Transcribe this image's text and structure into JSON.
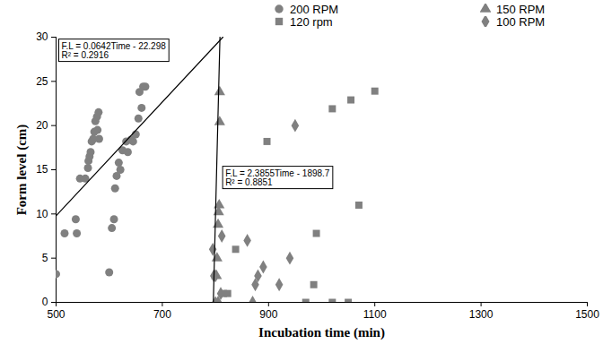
{
  "chart_data": {
    "type": "scatter",
    "xlabel": "Incubation time (min)",
    "ylabel": "Form level (cm)",
    "xlim": [
      500,
      1500
    ],
    "xticks": [
      500,
      700,
      900,
      1100,
      1300,
      1500
    ],
    "ylim": [
      0,
      30
    ],
    "yticks": [
      0,
      5,
      10,
      15,
      20,
      25,
      30
    ],
    "grid": false,
    "legend": "top",
    "series": [
      {
        "name": "200 RPM",
        "color": "#808080",
        "marker": "circle",
        "x": [
          500,
          516,
          537,
          539,
          545,
          555,
          560,
          561,
          563,
          565,
          567,
          570,
          572,
          574,
          577,
          580,
          578,
          581,
          600,
          605,
          609,
          611,
          614,
          618,
          621,
          625,
          632,
          635,
          641,
          645,
          650,
          655,
          657,
          664,
          661,
          668
        ],
        "values": [
          3.2,
          7.8,
          9.4,
          7.8,
          14,
          14,
          15.2,
          16,
          16.5,
          17,
          18.2,
          18.5,
          19.3,
          20.5,
          21,
          21.5,
          19.5,
          18.5,
          3.4,
          8.4,
          9.4,
          12.9,
          14.3,
          15.8,
          15,
          17.2,
          18.2,
          17,
          18.4,
          18.2,
          19,
          20.8,
          23.8,
          24.4,
          22,
          24.4
        ]
      },
      {
        "name": "150 RPM",
        "color": "#808080",
        "marker": "triangle",
        "x": [
          800,
          802,
          803,
          805,
          806,
          807,
          808,
          808
        ],
        "values": [
          0,
          3,
          5,
          8.8,
          10.2,
          11,
          20.4,
          23.8
        ]
      },
      {
        "name": "120 rpm",
        "color": "#808080",
        "marker": "square",
        "x": [
          815,
          823,
          838,
          897,
          970,
          985,
          990,
          1020,
          1020,
          1050,
          1055,
          1070,
          1100
        ],
        "values": [
          1,
          1,
          6,
          18.2,
          0,
          2,
          7.8,
          0,
          21.9,
          0,
          22.9,
          11,
          23.9
        ]
      },
      {
        "name": "100 RPM",
        "color": "#808080",
        "marker": "diamond",
        "x": [
          795,
          797,
          800,
          805,
          810,
          812,
          860,
          870,
          875,
          880,
          890,
          920,
          940,
          950
        ],
        "values": [
          6,
          3,
          3,
          0,
          1,
          7.5,
          7,
          0,
          2,
          3,
          4,
          2,
          5,
          20
        ]
      }
    ],
    "trendlines": [
      {
        "color": "#000000",
        "x": [
          500,
          814
        ],
        "values": [
          9.8,
          30
        ],
        "annotation": [
          "F.L = 0.0642Time - 22.298",
          "R² = 0.2916"
        ]
      },
      {
        "color": "#000000",
        "x": [
          796,
          808.5
        ],
        "values": [
          0,
          30
        ],
        "annotation": [
          "F.L = 2.3855Time - 1898.7",
          "R² = 0.8851"
        ]
      }
    ]
  }
}
